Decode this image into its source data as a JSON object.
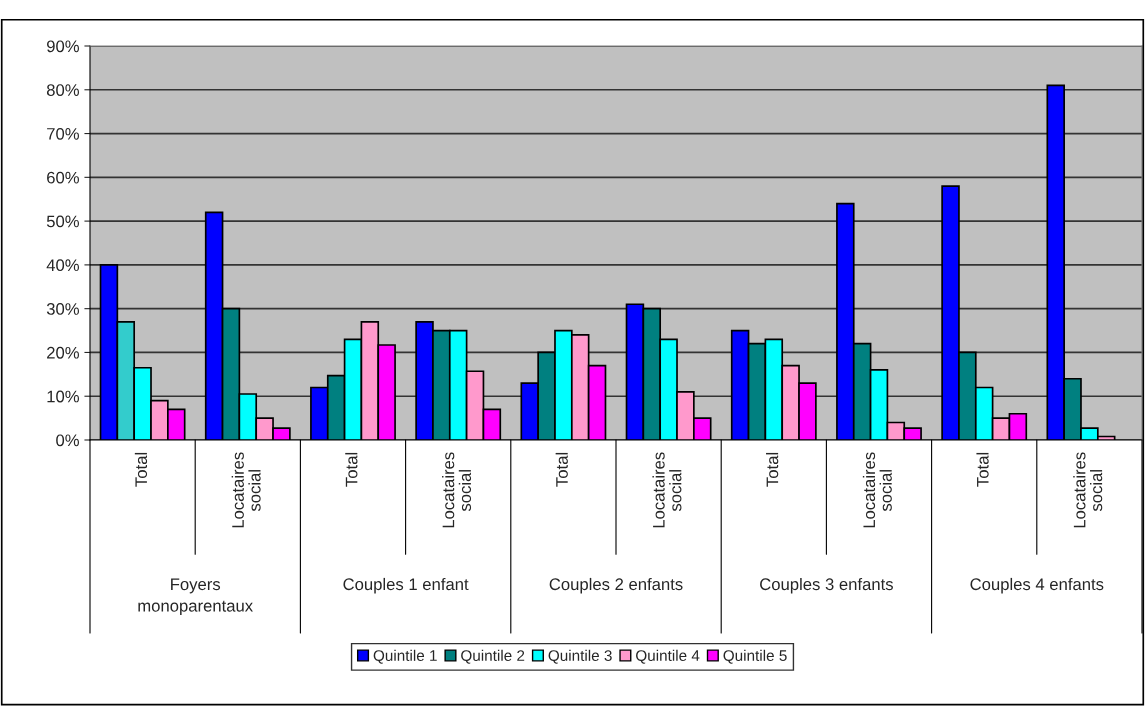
{
  "chart_data": {
    "type": "bar",
    "categories": [
      "Total",
      "Locataires social",
      "Total",
      "Locataires social",
      "Total",
      "Locataires social",
      "Total",
      "Locataires social",
      "Total",
      "Locataires social"
    ],
    "annotations": [
      "Foyers monoparentaux",
      "Couples 1 enfant",
      "Couples 2 enfants",
      "Couples 3 enfants",
      "Couples 4 enfants"
    ],
    "series": [
      {
        "name": "Quintile 1",
        "color": "#0000ff",
        "values": [
          40,
          52,
          12,
          27,
          13,
          31,
          25,
          54,
          58,
          81
        ]
      },
      {
        "name": "Quintile 2",
        "color": "#008080",
        "colors": [
          "#33cccc",
          "#008080",
          "#008080",
          "#008080",
          "#008080",
          "#008080",
          "#008080",
          "#008080",
          "#008080",
          "#008080"
        ],
        "values": [
          27,
          30,
          14.7,
          25,
          20,
          30,
          22,
          22,
          20,
          14
        ]
      },
      {
        "name": "Quintile 3",
        "color": "#00ffff",
        "values": [
          16.5,
          10.5,
          23,
          25,
          25,
          23,
          23,
          16,
          12,
          2.7
        ]
      },
      {
        "name": "Quintile 4",
        "color": "#ff99cc",
        "values": [
          9,
          5,
          27,
          15.7,
          24,
          11,
          17,
          4,
          5,
          0.8
        ]
      },
      {
        "name": "Quintile 5",
        "color": "#ff00ff",
        "values": [
          7,
          2.7,
          21.7,
          7,
          17,
          5,
          13,
          2.7,
          6,
          null
        ]
      }
    ],
    "ylim": [
      0,
      90
    ],
    "yticks": [
      {
        "value": 0,
        "label": "0%"
      },
      {
        "value": 10,
        "label": "10%"
      },
      {
        "value": 20,
        "label": "20%"
      },
      {
        "value": 30,
        "label": "30%"
      },
      {
        "value": 40,
        "label": "40%"
      },
      {
        "value": 50,
        "label": "50%"
      },
      {
        "value": 60,
        "label": "60%"
      },
      {
        "value": 70,
        "label": "70%"
      },
      {
        "value": 80,
        "label": "80%"
      },
      {
        "value": 90,
        "label": "90%"
      }
    ],
    "grid": "y",
    "legend": "bottom"
  }
}
